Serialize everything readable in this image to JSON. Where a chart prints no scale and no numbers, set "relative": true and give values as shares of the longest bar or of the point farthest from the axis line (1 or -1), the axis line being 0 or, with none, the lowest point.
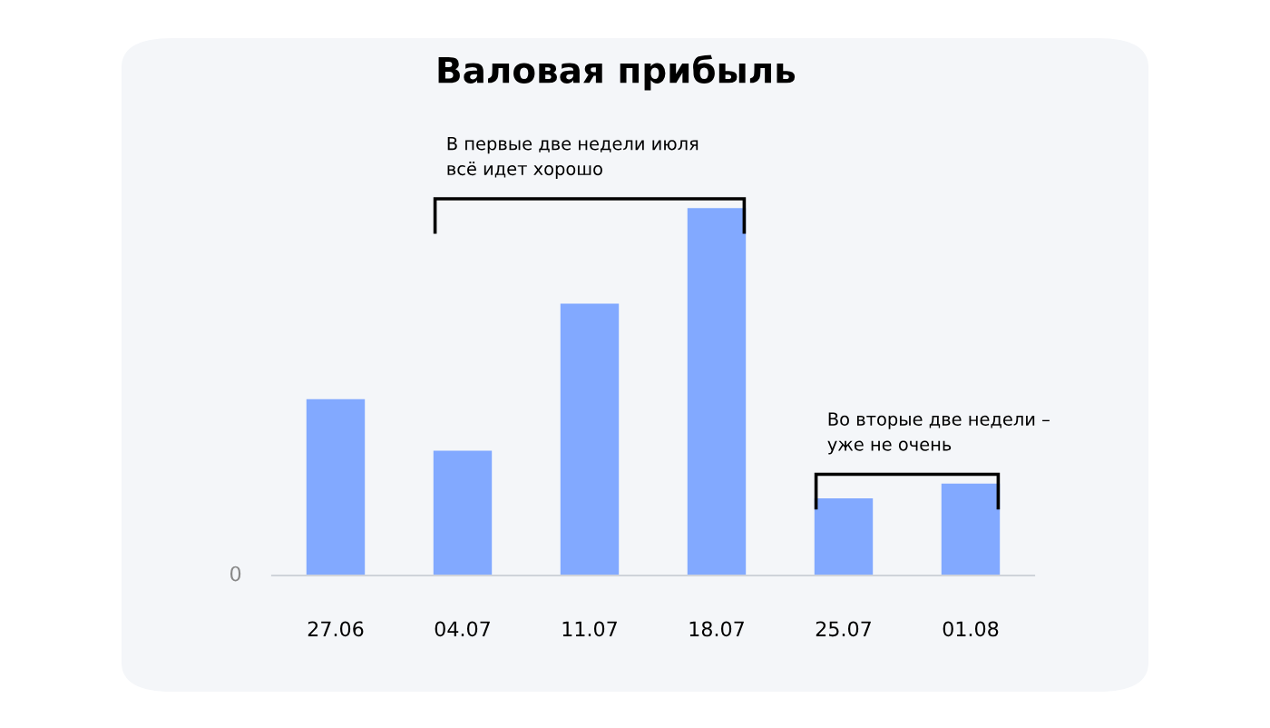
{
  "chart_data": {
    "type": "bar",
    "title": "Валовая прибыль",
    "relative": true,
    "categories": [
      "27.06",
      "04.07",
      "11.07",
      "18.07",
      "25.07",
      "01.08"
    ],
    "values": [
      0.48,
      0.34,
      0.74,
      1,
      0.21,
      0.25
    ],
    "color": "#82a9ff",
    "annotations": [
      "0",
      "В первые две недели июля\nвсё идет хорошо",
      "Во вторые две недели –\nуже не очень"
    ],
    "grid": false,
    "legend": false
  }
}
